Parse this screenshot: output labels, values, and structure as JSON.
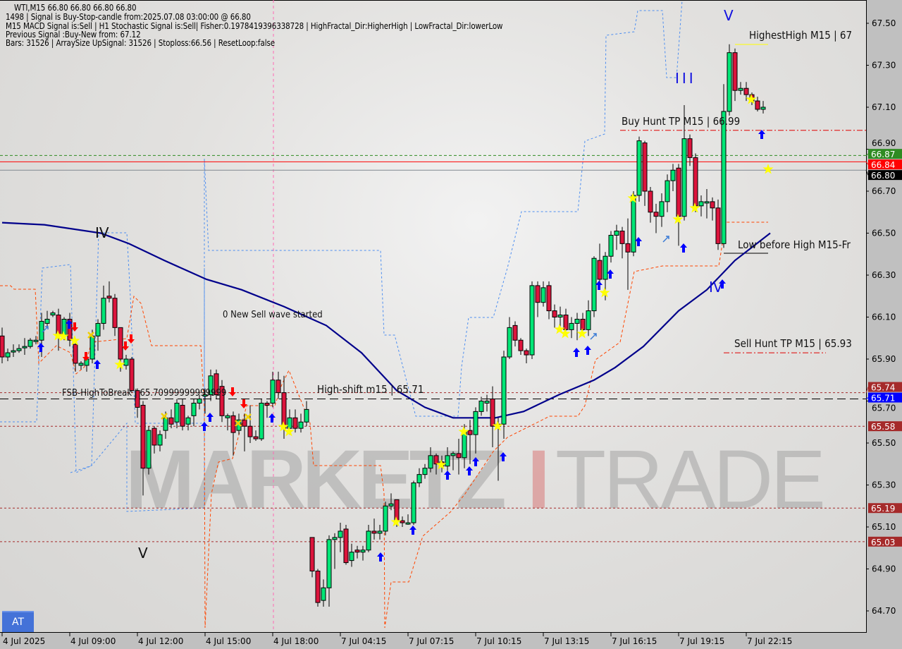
{
  "header": {
    "symbol_line": "WTI,M15  66.80 66.80 66.80 66.80",
    "lines": [
      "1498 | Signal is Buy-Stop-candle from:2025.07.08 03:00:00 @ 66.80",
      "M15 MACD Signal is:Sell | H1 Stochastic Signal is:Sell| Fisher:0.1978419396338728 | HighFractal_Dir:HigherHigh | LowFractal_Dir:lowerLow",
      "Previous Signal :Buy-New from: 67.12",
      "Bars: 31526 | ArraySize UpSignal: 31526 | Stoploss:66.56 | ResetLoop:false"
    ]
  },
  "annotations": {
    "sell_wave": "0 New Sell wave started",
    "fsb": "FSB-HighToBreak | 65.70999999999999",
    "high_shift": "High-shift m15 | 65.71",
    "buy_hunt": "Buy Hunt TP M15 | 66.99",
    "highest_high": "HighestHigh   M15 | 67",
    "low_before_high": "Low before High   M15-Fr",
    "sell_hunt": "Sell Hunt TP M15 | 65.93",
    "wave_iv_left": "IV",
    "wave_v_left": "V",
    "wave_iii": "III",
    "wave_v_right": "V",
    "wave_iv_right": "IV"
  },
  "watermark": {
    "left": "MARKETZ",
    "mid": "I",
    "right": "TRADE"
  },
  "at_button": "AT",
  "colors": {
    "bull": "#00e676",
    "bear": "#dc143c",
    "ma": "#00008b",
    "support": "#ff4500",
    "band": "#4d8ef0",
    "arrow_up": "#0000ff",
    "arrow_down": "#ff0000",
    "star": "#ffff00"
  },
  "chart_data": {
    "type": "candlestick",
    "symbol": "WTI",
    "timeframe": "M15",
    "ylim": [
      64.62,
      67.6
    ],
    "y_ticks": [
      "67.50",
      "67.30",
      "67.10",
      "66.90",
      "66.70",
      "66.50",
      "66.30",
      "66.10",
      "65.90",
      "65.70",
      "65.50",
      "65.30",
      "65.10",
      "64.90",
      "64.70"
    ],
    "x_ticks": [
      {
        "index": 0,
        "label": "4 Jul 2025"
      },
      {
        "index": 12,
        "label": "4 Jul 09:00"
      },
      {
        "index": 24,
        "label": "4 Jul 12:00"
      },
      {
        "index": 36,
        "label": "4 Jul 15:00"
      },
      {
        "index": 48,
        "label": "4 Jul 18:00"
      },
      {
        "index": 60,
        "label": "7 Jul 04:15"
      },
      {
        "index": 72,
        "label": "7 Jul 07:15"
      },
      {
        "index": 84,
        "label": "7 Jul 10:15"
      },
      {
        "index": 96,
        "label": "7 Jul 13:15"
      },
      {
        "index": 108,
        "label": "7 Jul 16:15"
      },
      {
        "index": 120,
        "label": "7 Jul 19:15"
      },
      {
        "index": 132,
        "label": "7 Jul 22:15"
      }
    ],
    "price_tags": [
      {
        "value": "66.87",
        "color": "#2e8b22",
        "text": "#ffffff"
      },
      {
        "value": "66.84",
        "color": "#ff0000",
        "text": "#ffffff"
      },
      {
        "value": "66.80",
        "color": "#000000",
        "text": "#ffffff"
      },
      {
        "value": "65.74",
        "color": "#a52a2a",
        "text": "#ffffff"
      },
      {
        "value": "65.71",
        "color": "#0000ff",
        "text": "#ffffff"
      },
      {
        "value": "65.58",
        "color": "#a52a2a",
        "text": "#ffffff"
      },
      {
        "value": "65.19",
        "color": "#a52a2a",
        "text": "#ffffff"
      },
      {
        "value": "65.03",
        "color": "#a52a2a",
        "text": "#ffffff"
      }
    ],
    "levels": [
      {
        "price": 66.87,
        "style": "dashed",
        "color": "#2e8b22"
      },
      {
        "price": 66.84,
        "style": "solid",
        "color": "#ff0000"
      },
      {
        "price": 66.8,
        "style": "solid",
        "color": "#808890"
      },
      {
        "price": 65.74,
        "style": "dotted",
        "color": "#a52a2a"
      },
      {
        "price": 65.71,
        "style": "longdash",
        "color": "#000000"
      },
      {
        "price": 65.58,
        "style": "dotted",
        "color": "#a52a2a"
      },
      {
        "price": 65.19,
        "style": "dotted",
        "color": "#a52a2a"
      },
      {
        "price": 65.03,
        "style": "dotted",
        "color": "#a52a2a"
      }
    ],
    "ohlc": [
      [
        66.01,
        66.05,
        65.88,
        65.91
      ],
      [
        65.91,
        65.95,
        65.89,
        65.93
      ],
      [
        65.94,
        65.97,
        65.91,
        65.94
      ],
      [
        65.94,
        65.97,
        65.93,
        65.95
      ],
      [
        65.96,
        66.0,
        65.92,
        65.96
      ],
      [
        65.96,
        66.0,
        65.95,
        65.99
      ],
      [
        65.99,
        66.01,
        65.97,
        65.99
      ],
      [
        65.99,
        66.12,
        65.91,
        66.08
      ],
      [
        66.07,
        66.13,
        66.05,
        66.09
      ],
      [
        66.11,
        66.13,
        66.1,
        66.12
      ],
      [
        66.11,
        66.14,
        65.94,
        66.01
      ],
      [
        66.01,
        66.1,
        65.99,
        66.09
      ],
      [
        66.09,
        66.12,
        65.96,
        65.99
      ],
      [
        65.97,
        65.99,
        65.84,
        65.88
      ],
      [
        65.87,
        65.89,
        65.85,
        65.88
      ],
      [
        65.87,
        65.93,
        65.84,
        65.9
      ],
      [
        65.9,
        66.04,
        65.88,
        66.01
      ],
      [
        66.01,
        66.09,
        65.94,
        66.07
      ],
      [
        66.07,
        66.25,
        66.04,
        66.19
      ],
      [
        66.2,
        66.27,
        66.17,
        66.19
      ],
      [
        66.19,
        66.21,
        66.01,
        66.05
      ],
      [
        66.05,
        66.05,
        65.84,
        65.9
      ],
      [
        65.87,
        65.92,
        65.85,
        65.9
      ],
      [
        65.9,
        65.91,
        65.74,
        65.75
      ],
      [
        65.75,
        65.76,
        65.62,
        65.67
      ],
      [
        65.68,
        65.7,
        65.25,
        65.38
      ],
      [
        65.38,
        65.58,
        65.35,
        65.56
      ],
      [
        65.57,
        65.58,
        65.45,
        65.49
      ],
      [
        65.49,
        65.56,
        65.46,
        65.54
      ],
      [
        65.56,
        65.65,
        65.52,
        65.62
      ],
      [
        65.62,
        65.66,
        65.57,
        65.59
      ],
      [
        65.6,
        65.71,
        65.57,
        65.69
      ],
      [
        65.68,
        65.71,
        65.56,
        65.58
      ],
      [
        65.59,
        65.63,
        65.56,
        65.62
      ],
      [
        65.63,
        65.71,
        65.58,
        65.69
      ],
      [
        65.69,
        65.73,
        65.66,
        65.71
      ],
      [
        65.73,
        65.76,
        65.64,
        65.73
      ],
      [
        65.73,
        65.85,
        65.7,
        65.82
      ],
      [
        65.83,
        65.85,
        65.71,
        65.73
      ],
      [
        65.77,
        65.8,
        65.6,
        65.63
      ],
      [
        65.62,
        65.64,
        65.56,
        65.63
      ],
      [
        65.63,
        65.65,
        65.44,
        65.55
      ],
      [
        65.56,
        65.64,
        65.54,
        65.61
      ],
      [
        65.61,
        65.64,
        65.46,
        65.58
      ],
      [
        65.58,
        65.68,
        65.5,
        65.53
      ],
      [
        65.53,
        65.56,
        65.51,
        65.52
      ],
      [
        65.52,
        65.71,
        65.51,
        65.69
      ],
      [
        65.69,
        65.7,
        65.62,
        65.68
      ],
      [
        65.69,
        65.84,
        65.67,
        65.8
      ],
      [
        65.8,
        65.84,
        65.71,
        65.74
      ],
      [
        65.74,
        65.82,
        65.52,
        65.57
      ],
      [
        65.57,
        65.66,
        65.54,
        65.62
      ],
      [
        65.62,
        65.66,
        65.55,
        65.57
      ],
      [
        65.57,
        65.64,
        65.55,
        65.6
      ],
      [
        65.6,
        65.7,
        65.58,
        65.66
      ],
      [
        65.05,
        65.05,
        64.86,
        64.89
      ],
      [
        64.89,
        64.9,
        64.72,
        64.74
      ],
      [
        64.75,
        64.85,
        64.72,
        64.81
      ],
      [
        64.81,
        65.06,
        64.72,
        65.04
      ],
      [
        65.04,
        65.07,
        64.9,
        65.05
      ],
      [
        65.05,
        65.12,
        64.98,
        65.08
      ],
      [
        65.09,
        65.11,
        64.92,
        64.93
      ],
      [
        64.94,
        65.02,
        64.91,
        64.98
      ],
      [
        64.99,
        65.01,
        64.95,
        64.98
      ],
      [
        64.98,
        65.01,
        64.94,
        64.99
      ],
      [
        64.99,
        65.11,
        64.98,
        65.08
      ],
      [
        65.08,
        65.14,
        65.04,
        65.07
      ],
      [
        65.07,
        65.11,
        65.04,
        65.08
      ],
      [
        65.08,
        65.22,
        65.06,
        65.2
      ],
      [
        65.2,
        65.26,
        65.18,
        65.21
      ],
      [
        65.23,
        65.23,
        65.1,
        65.13
      ],
      [
        65.13,
        65.15,
        65.1,
        65.12
      ],
      [
        65.12,
        65.16,
        65.11,
        65.12
      ],
      [
        65.12,
        65.32,
        65.11,
        65.31
      ],
      [
        65.31,
        65.38,
        65.29,
        65.35
      ],
      [
        65.35,
        65.4,
        65.33,
        65.38
      ],
      [
        65.38,
        65.48,
        65.36,
        65.44
      ],
      [
        65.44,
        65.45,
        65.35,
        65.4
      ],
      [
        65.41,
        65.44,
        65.36,
        65.39
      ],
      [
        65.39,
        65.48,
        65.36,
        65.44
      ],
      [
        65.44,
        65.46,
        65.37,
        65.45
      ],
      [
        65.45,
        65.52,
        65.35,
        65.43
      ],
      [
        65.43,
        65.59,
        65.38,
        65.56
      ],
      [
        65.56,
        65.61,
        65.4,
        65.54
      ],
      [
        65.54,
        65.67,
        65.45,
        65.65
      ],
      [
        65.65,
        65.72,
        65.63,
        65.7
      ],
      [
        65.69,
        65.73,
        65.65,
        65.7
      ],
      [
        65.71,
        65.77,
        65.48,
        65.58
      ],
      [
        65.58,
        65.62,
        65.32,
        65.59
      ],
      [
        65.59,
        65.94,
        65.52,
        65.91
      ],
      [
        65.91,
        66.1,
        65.9,
        66.05
      ],
      [
        66.06,
        66.08,
        65.96,
        65.99
      ],
      [
        65.99,
        66.0,
        65.92,
        65.94
      ],
      [
        65.94,
        65.95,
        65.88,
        65.92
      ],
      [
        65.92,
        66.27,
        65.9,
        66.25
      ],
      [
        66.25,
        66.27,
        66.1,
        66.17
      ],
      [
        66.17,
        66.27,
        66.15,
        66.24
      ],
      [
        66.25,
        66.27,
        66.09,
        66.13
      ],
      [
        66.13,
        66.16,
        66.05,
        66.1
      ],
      [
        66.1,
        66.15,
        66.03,
        66.11
      ],
      [
        66.11,
        66.14,
        66.01,
        66.04
      ],
      [
        66.04,
        66.1,
        66.0,
        66.07
      ],
      [
        66.07,
        66.12,
        65.99,
        66.09
      ],
      [
        66.09,
        66.12,
        66.02,
        66.04
      ],
      [
        66.04,
        66.18,
        66.01,
        66.13
      ],
      [
        66.13,
        66.39,
        66.1,
        66.38
      ],
      [
        66.37,
        66.45,
        66.23,
        66.28
      ],
      [
        66.28,
        66.41,
        66.18,
        66.39
      ],
      [
        66.39,
        66.51,
        66.36,
        66.49
      ],
      [
        66.49,
        66.54,
        66.42,
        66.51
      ],
      [
        66.51,
        66.53,
        66.38,
        66.45
      ],
      [
        66.45,
        66.57,
        66.23,
        66.41
      ],
      [
        66.41,
        66.7,
        66.39,
        66.68
      ],
      [
        66.68,
        66.96,
        66.65,
        66.94
      ],
      [
        66.93,
        66.94,
        66.63,
        66.7
      ],
      [
        66.7,
        66.72,
        66.55,
        66.6
      ],
      [
        66.6,
        66.64,
        66.5,
        66.58
      ],
      [
        66.58,
        66.69,
        66.53,
        66.65
      ],
      [
        66.65,
        66.78,
        66.6,
        66.75
      ],
      [
        66.75,
        66.83,
        66.7,
        66.8
      ],
      [
        66.81,
        66.83,
        66.44,
        66.58
      ],
      [
        66.58,
        67.11,
        66.56,
        66.95
      ],
      [
        66.95,
        66.97,
        66.82,
        66.86
      ],
      [
        66.86,
        66.88,
        66.6,
        66.63
      ],
      [
        66.63,
        66.68,
        66.58,
        66.65
      ],
      [
        66.65,
        66.71,
        66.57,
        66.65
      ],
      [
        66.65,
        66.67,
        66.56,
        66.62
      ],
      [
        66.62,
        66.66,
        66.42,
        66.45
      ],
      [
        66.45,
        67.21,
        66.43,
        67.08
      ],
      [
        67.08,
        67.4,
        67.06,
        67.36
      ],
      [
        67.36,
        67.38,
        67.13,
        67.18
      ],
      [
        67.18,
        67.22,
        67.16,
        67.19
      ],
      [
        67.19,
        67.22,
        67.13,
        67.16
      ],
      [
        67.16,
        67.17,
        67.11,
        67.13
      ],
      [
        67.13,
        67.15,
        67.08,
        67.09
      ],
      [
        67.09,
        67.13,
        67.07,
        67.1
      ]
    ],
    "moving_average": [
      [
        0,
        66.55
      ],
      [
        7.5,
        66.54
      ],
      [
        17.5,
        66.5
      ],
      [
        22.5,
        66.45
      ],
      [
        28.75,
        66.37
      ],
      [
        36.25,
        66.28
      ],
      [
        42.5,
        66.23
      ],
      [
        50,
        66.15
      ],
      [
        57.5,
        66.06
      ],
      [
        63.75,
        65.93
      ],
      [
        70,
        65.75
      ],
      [
        75,
        65.67
      ],
      [
        80,
        65.62
      ],
      [
        87.5,
        65.62
      ],
      [
        92.5,
        65.65
      ],
      [
        98.75,
        65.73
      ],
      [
        105,
        65.8
      ],
      [
        108.75,
        65.86
      ],
      [
        113.75,
        65.96
      ],
      [
        120,
        66.13
      ],
      [
        125,
        66.23
      ],
      [
        130,
        66.37
      ],
      [
        136.25,
        66.5
      ]
    ]
  }
}
